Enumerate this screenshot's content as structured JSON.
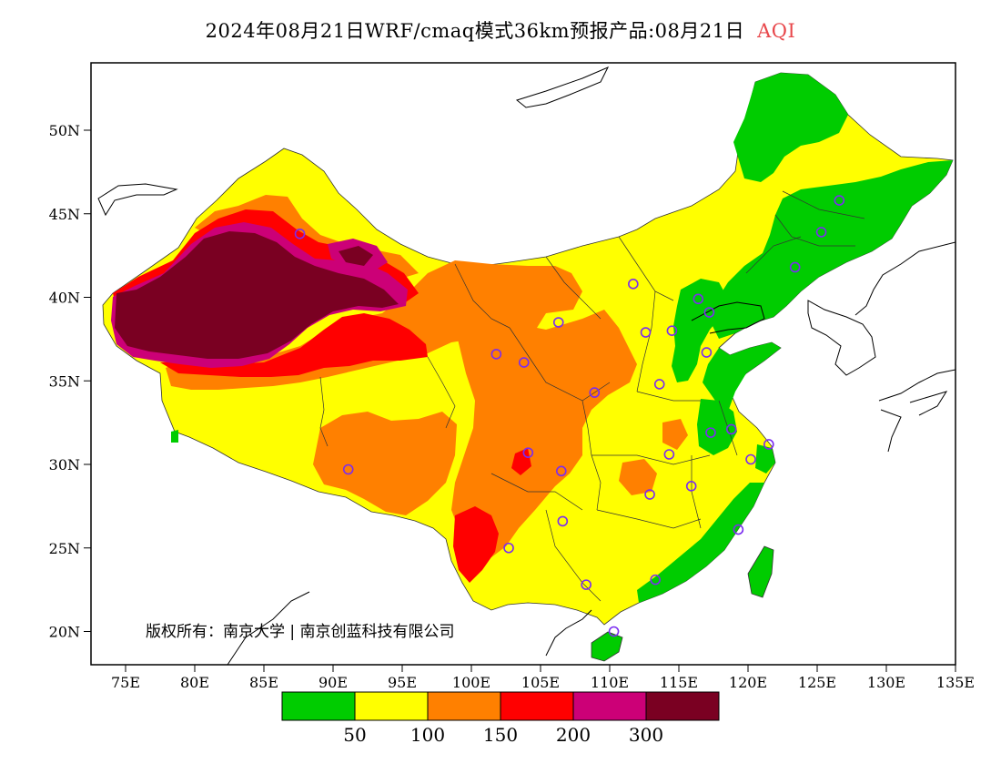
{
  "title": {
    "main": "2024年08月21日WRF/cmaq模式36km预报产品:08月21日",
    "variable": "AQI"
  },
  "copyright": "版权所有：南京大学 | 南京创蓝科技有限公司",
  "axes": {
    "lat_ticks": [
      "50N",
      "45N",
      "40N",
      "35N",
      "30N",
      "25N",
      "20N"
    ],
    "lon_ticks": [
      "75E",
      "80E",
      "85E",
      "90E",
      "95E",
      "100E",
      "105E",
      "110E",
      "115E",
      "120E",
      "125E",
      "130E",
      "135E"
    ]
  },
  "legend": {
    "colors": [
      "#00cc00",
      "#ffff00",
      "#ff8000",
      "#ff0000",
      "#cc0077",
      "#7a0022"
    ],
    "labels": [
      "50",
      "100",
      "150",
      "200",
      "300"
    ]
  },
  "cities": [
    [
      87.6,
      43.8
    ],
    [
      91.1,
      29.7
    ],
    [
      101.8,
      36.6
    ],
    [
      103.8,
      36.1
    ],
    [
      106.3,
      38.5
    ],
    [
      108.9,
      34.3
    ],
    [
      111.7,
      40.8
    ],
    [
      112.6,
      37.9
    ],
    [
      114.5,
      38.0
    ],
    [
      116.4,
      39.9
    ],
    [
      117.2,
      39.1
    ],
    [
      113.6,
      34.8
    ],
    [
      117.0,
      36.7
    ],
    [
      114.3,
      30.6
    ],
    [
      112.9,
      28.2
    ],
    [
      115.9,
      28.7
    ],
    [
      117.3,
      31.9
    ],
    [
      118.8,
      32.1
    ],
    [
      120.2,
      30.3
    ],
    [
      121.5,
      31.2
    ],
    [
      119.3,
      26.1
    ],
    [
      113.3,
      23.1
    ],
    [
      108.3,
      22.8
    ],
    [
      110.3,
      20.0
    ],
    [
      106.6,
      26.6
    ],
    [
      102.7,
      25.0
    ],
    [
      104.1,
      30.7
    ],
    [
      106.5,
      29.6
    ],
    [
      123.4,
      41.8
    ],
    [
      125.3,
      43.9
    ],
    [
      126.6,
      45.8
    ]
  ]
}
